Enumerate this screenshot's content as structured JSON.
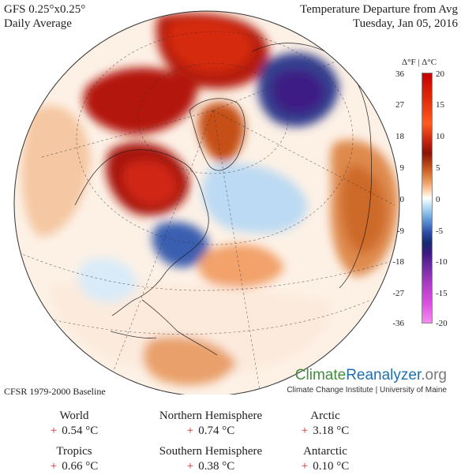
{
  "header": {
    "model": "GFS 0.25°x0.25°",
    "period": "Daily Average",
    "title": "Temperature Departure from Avg",
    "date": "Tuesday, Jan 05, 2016"
  },
  "colorbar": {
    "heading": "Δ°F | Δ°C",
    "fahrenheit_ticks": [
      "36",
      "27",
      "18",
      "9",
      "0",
      "-9",
      "-18",
      "-27",
      "-36"
    ],
    "celsius_ticks": [
      "20",
      "15",
      "10",
      "5",
      "0",
      "-5",
      "-10",
      "-15",
      "-20"
    ]
  },
  "branding": {
    "part1": "Climate",
    "part2": "Reanalyzer",
    "part3": ".org",
    "sub": "Climate Change Institute | University of Maine"
  },
  "baseline": "CFSR 1979-2000 Baseline",
  "stats": [
    {
      "name": "World",
      "sign": "+",
      "value": "0.54 °C"
    },
    {
      "name": "Northern Hemisphere",
      "sign": "+",
      "value": "0.74 °C"
    },
    {
      "name": "Arctic",
      "sign": "+",
      "value": "3.18 °C"
    },
    {
      "name": "Tropics",
      "sign": "+",
      "value": "0.66 °C"
    },
    {
      "name": "Southern Hemisphere",
      "sign": "+",
      "value": "0.38 °C"
    },
    {
      "name": "Antarctic",
      "sign": "+",
      "value": "0.10 °C"
    }
  ]
}
